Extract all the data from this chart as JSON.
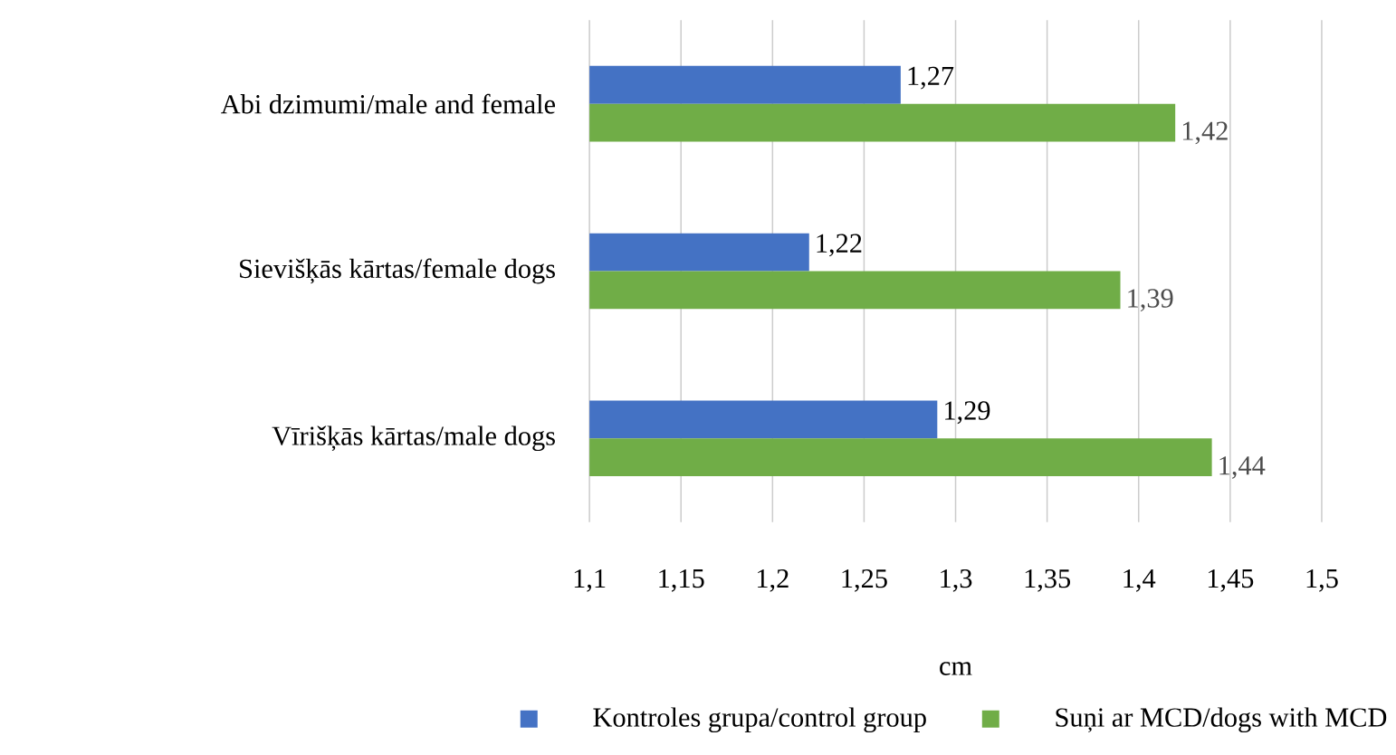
{
  "chart_data": {
    "type": "bar",
    "orientation": "horizontal",
    "xlabel": "cm",
    "categories": [
      "Abi dzimumi/male and female",
      "Sievišķās kārtas/female dogs",
      "Vīrišķās kārtas/male dogs"
    ],
    "series": [
      {
        "name": "Kontroles grupa/control group",
        "color": "#4472c4",
        "values": [
          1.27,
          1.22,
          1.29
        ],
        "value_labels": [
          "1,27",
          "1,22",
          "1,29"
        ]
      },
      {
        "name": "Suņi ar MCD/dogs with MCD",
        "color": "#70ad47",
        "values": [
          1.42,
          1.39,
          1.44
        ],
        "value_labels": [
          "1,42",
          "1,39",
          "1,44"
        ]
      }
    ],
    "xlim": [
      1.1,
      1.5
    ],
    "xticks": [
      {
        "value": 1.1,
        "label": "1,1"
      },
      {
        "value": 1.15,
        "label": "1,15"
      },
      {
        "value": 1.2,
        "label": "1,2"
      },
      {
        "value": 1.25,
        "label": "1,25"
      },
      {
        "value": 1.3,
        "label": "1,3"
      },
      {
        "value": 1.35,
        "label": "1,35"
      },
      {
        "value": 1.4,
        "label": "1,4"
      },
      {
        "value": 1.45,
        "label": "1,45"
      },
      {
        "value": 1.5,
        "label": "1,5"
      }
    ],
    "grid": "x",
    "legend": "bottom"
  }
}
